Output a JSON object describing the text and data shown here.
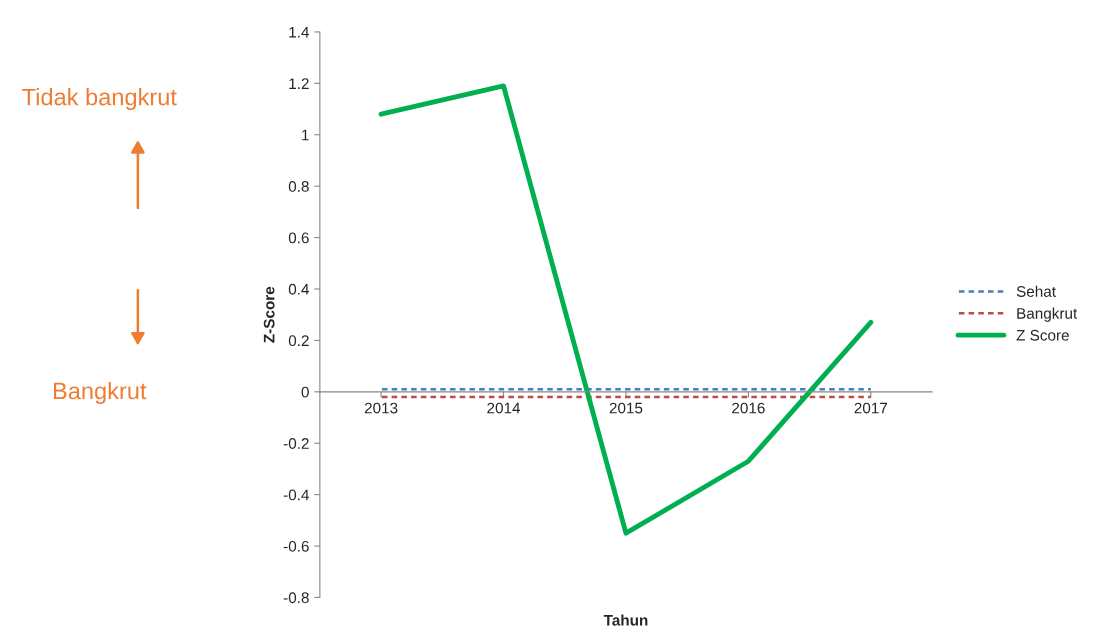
{
  "chart_data": {
    "type": "line",
    "xlabel": "Tahun",
    "ylabel": "Z-Score",
    "categories": [
      "2013",
      "2014",
      "2015",
      "2016",
      "2017"
    ],
    "series": [
      {
        "name": "Sehat",
        "color": "#4a7ebb",
        "values": [
          0.01,
          0.01,
          0.01,
          0.01,
          0.01
        ],
        "line_style": "dashed"
      },
      {
        "name": "Bangkrut",
        "color": "#be4b48",
        "values": [
          -0.02,
          -0.02,
          -0.02,
          -0.02,
          -0.02
        ],
        "line_style": "dashed"
      },
      {
        "name": "Z Score",
        "color": "#00b050",
        "values": [
          1.08,
          1.19,
          -0.55,
          -0.27,
          0.27
        ],
        "line_style": "solid"
      }
    ],
    "ylim": [
      -0.8,
      1.4
    ],
    "yticks": [
      -0.8,
      -0.6,
      -0.4,
      -0.2,
      0,
      0.2,
      0.4,
      0.6,
      0.8,
      1,
      1.2,
      1.4
    ],
    "grid": false,
    "legend": "right",
    "marker": "none",
    "annotations": [
      "Tidak bangkrut",
      "Bangkrut"
    ]
  }
}
